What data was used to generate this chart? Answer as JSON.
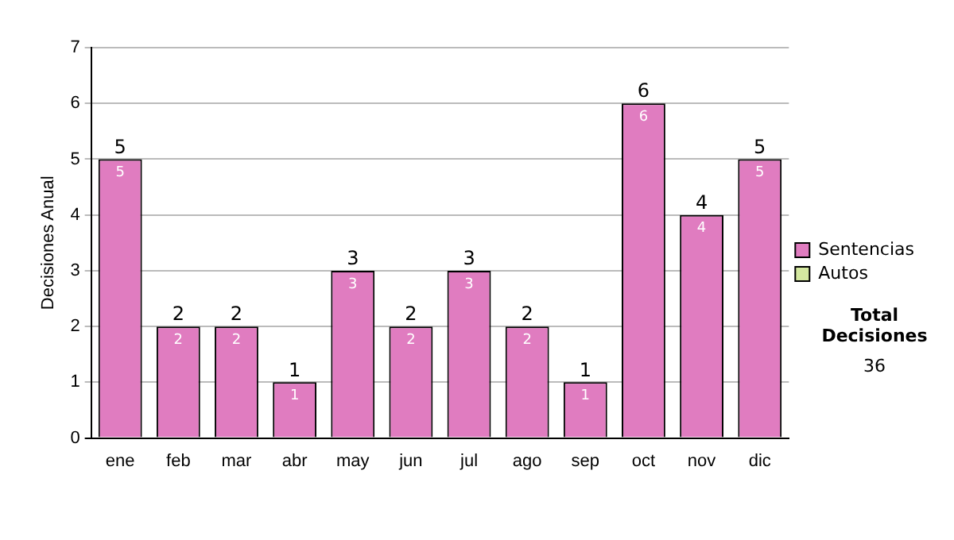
{
  "chart_data": {
    "type": "bar",
    "stacked": true,
    "ylabel": "Decisiones Anual",
    "categories": [
      "ene",
      "feb",
      "mar",
      "abr",
      "may",
      "jun",
      "jul",
      "ago",
      "sep",
      "oct",
      "nov",
      "dic"
    ],
    "series": [
      {
        "name": "Sentencias",
        "color": "#e07cc0",
        "values": [
          5,
          2,
          2,
          1,
          3,
          2,
          3,
          2,
          1,
          6,
          4,
          5
        ],
        "value_labels": [
          "5",
          "2",
          "2",
          "1",
          "3",
          "2",
          "3",
          "2",
          "1",
          "6",
          "4",
          "5"
        ]
      },
      {
        "name": "Autos",
        "color": "#d4e8a0",
        "values": [
          0,
          0,
          0,
          0,
          0,
          0,
          0,
          0,
          0,
          0,
          0,
          0
        ]
      }
    ],
    "totals": [
      "5",
      "2",
      "2",
      "1",
      "3",
      "2",
      "3",
      "2",
      "1",
      "6",
      "4",
      "5"
    ],
    "ylim": [
      0,
      7
    ],
    "yticks": [
      0,
      1,
      2,
      3,
      4,
      5,
      6,
      7
    ],
    "grid": "y",
    "legend": "right",
    "annotations": [
      "Total Decisiones",
      "36"
    ]
  }
}
